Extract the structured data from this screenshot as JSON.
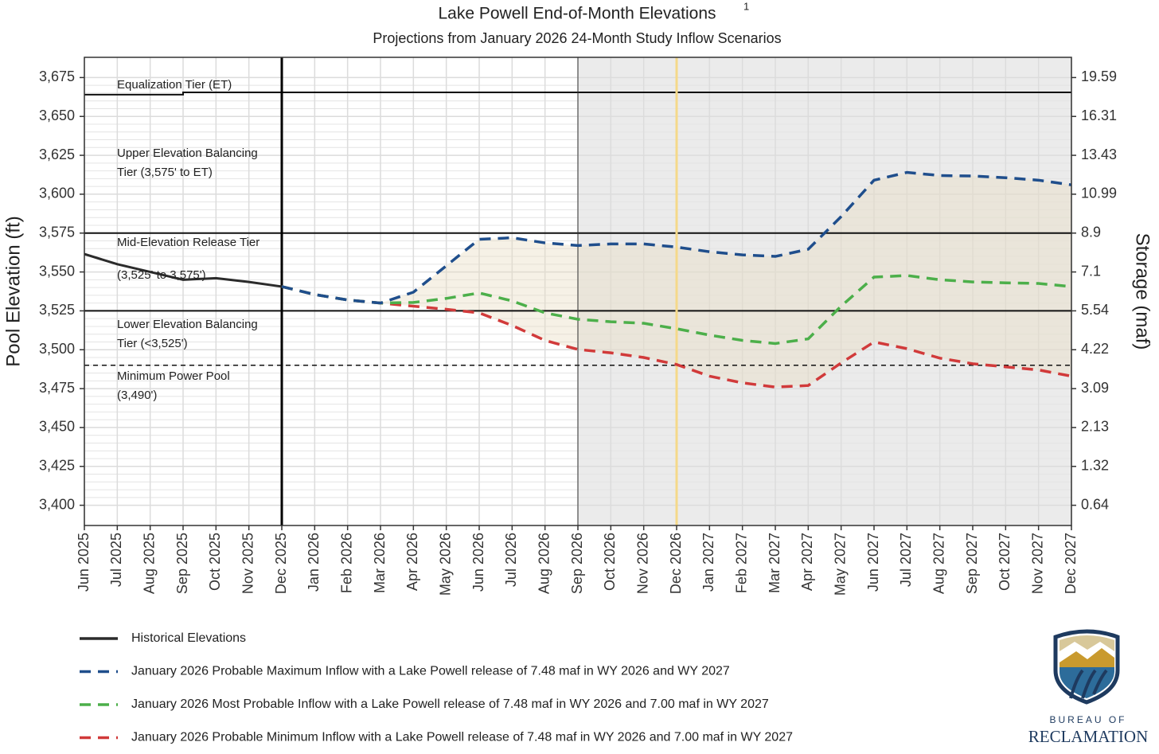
{
  "chart_data": {
    "type": "line",
    "title": "Lake Powell End-of-Month Elevations",
    "title_note": "1",
    "subtitle": "Projections from January 2026 24-Month Study Inflow Scenarios",
    "y_label": "Pool Elevation (ft)",
    "y2_label": "Storage (maf)",
    "categories": [
      "Jun 2025",
      "Jul 2025",
      "Aug 2025",
      "Sep 2025",
      "Oct 2025",
      "Nov 2025",
      "Dec 2025",
      "Jan 2026",
      "Feb 2026",
      "Mar 2026",
      "Apr 2026",
      "May 2026",
      "Jun 2026",
      "Jul 2026",
      "Aug 2026",
      "Sep 2026",
      "Oct 2026",
      "Nov 2026",
      "Dec 2026",
      "Jan 2027",
      "Feb 2027",
      "Mar 2027",
      "Apr 2027",
      "May 2027",
      "Jun 2027",
      "Jul 2027",
      "Aug 2027",
      "Sep 2027",
      "Oct 2027",
      "Nov 2027",
      "Dec 2027"
    ],
    "ylim": [
      3387,
      3688
    ],
    "yticks": [
      {
        "value": 3400,
        "label": "3,400"
      },
      {
        "value": 3425,
        "label": "3,425"
      },
      {
        "value": 3450,
        "label": "3,450"
      },
      {
        "value": 3475,
        "label": "3,475"
      },
      {
        "value": 3500,
        "label": "3,500"
      },
      {
        "value": 3525,
        "label": "3,525"
      },
      {
        "value": 3550,
        "label": "3,550"
      },
      {
        "value": 3575,
        "label": "3,575"
      },
      {
        "value": 3600,
        "label": "3,600"
      },
      {
        "value": 3625,
        "label": "3,625"
      },
      {
        "value": 3650,
        "label": "3,650"
      },
      {
        "value": 3675,
        "label": "3,675"
      }
    ],
    "y2ticks": [
      0.64,
      1.32,
      2.13,
      3.09,
      4.22,
      5.54,
      7.1,
      8.9,
      10.99,
      13.43,
      16.31,
      19.59
    ],
    "grid": true,
    "series": [
      {
        "name": "Historical Elevations",
        "color": "#2b2b2b",
        "dashed": false,
        "values": [
          3561.5,
          3555,
          3550,
          3545,
          3546,
          3543.6,
          3540.6,
          null,
          null,
          null,
          null,
          null,
          null,
          null,
          null,
          null,
          null,
          null,
          null,
          null,
          null,
          null,
          null,
          null,
          null,
          null,
          null,
          null,
          null,
          null,
          null
        ]
      },
      {
        "name": "January 2026 Probable Maximum Inflow with a Lake Powell release of 7.48 maf in WY 2026 and WY 2027",
        "color": "#1f4e8c",
        "dashed": true,
        "values": [
          null,
          null,
          null,
          null,
          null,
          null,
          3540.6,
          3535.5,
          3532,
          3530,
          3537,
          3554,
          3571,
          3572,
          3568.7,
          3567,
          3568,
          3568,
          3566,
          3563,
          3561,
          3560,
          3564.6,
          3585.6,
          3609,
          3614,
          3612,
          3611.7,
          3610.6,
          3609,
          3606
        ]
      },
      {
        "name": "January 2026 Most Probable Inflow with a Lake Powell release of 7.48 maf in WY 2026 and 7.00 maf in WY 2027",
        "color": "#4caf4a",
        "dashed": true,
        "values": [
          null,
          null,
          null,
          null,
          null,
          null,
          3540.6,
          3535.5,
          3532,
          3530,
          3530.4,
          3533,
          3536.5,
          3531.4,
          3523.7,
          3519.6,
          3518,
          3517,
          3513.5,
          3509.4,
          3506,
          3504,
          3507,
          3528,
          3546.7,
          3547.7,
          3545,
          3543.6,
          3543,
          3542.6,
          3540.6
        ]
      },
      {
        "name": "January 2026 Probable Minimum Inflow with a Lake Powell release of 7.48 maf in WY 2026 and 7.00 maf in WY 2027",
        "color": "#d13a3a",
        "dashed": true,
        "values": [
          null,
          null,
          null,
          null,
          null,
          null,
          3540.6,
          3535.5,
          3532,
          3530,
          3528,
          3526,
          3523.7,
          3515.6,
          3506,
          3500.2,
          3498,
          3495,
          3490.5,
          3483,
          3478.7,
          3476,
          3477,
          3491.5,
          3505,
          3500.7,
          3494.6,
          3491,
          3489,
          3487,
          3483
        ]
      }
    ],
    "band_between": [
      1,
      3
    ],
    "band_color": "#e8dcc0",
    "equalization_tier_values": [
      3664,
      3664,
      3664,
      3665.5,
      3665.5,
      3665.5,
      3665.5,
      3665.5,
      3665.5,
      3665.5,
      3665.5,
      3665.5,
      3665.5,
      3665.5,
      3665.5,
      3665.5,
      3665.5,
      3665.5,
      3665.5,
      3665.5,
      3665.5,
      3665.5,
      3665.5,
      3665.5,
      3665.5,
      3665.5,
      3665.5,
      3665.5,
      3665.5,
      3665.5,
      3665.5
    ],
    "tier_lines": [
      3575,
      3525
    ],
    "minimum_power_pool": 3490,
    "shaded_from": "Sep 2026",
    "shade_color": "#ebebeb",
    "vertical_lines": [
      {
        "x": "Dec 2025",
        "color": "#000000",
        "width": 3
      },
      {
        "x": "Sep 2026",
        "color": "#333333",
        "width": 1
      },
      {
        "x": "Dec 2026",
        "color": "#f5d98a",
        "width": 3
      }
    ],
    "annotations": [
      "Equalization Tier (ET)",
      "Upper Elevation Balancing",
      "Tier (3,575' to ET)",
      "Mid-Elevation Release Tier",
      "(3,525' to 3,575')",
      "Lower Elevation Balancing",
      "Tier (<3,525')",
      "Minimum Power Pool",
      "(3,490')"
    ]
  },
  "logo": {
    "line1": "BUREAU OF",
    "line2": "RECLAMATION"
  }
}
